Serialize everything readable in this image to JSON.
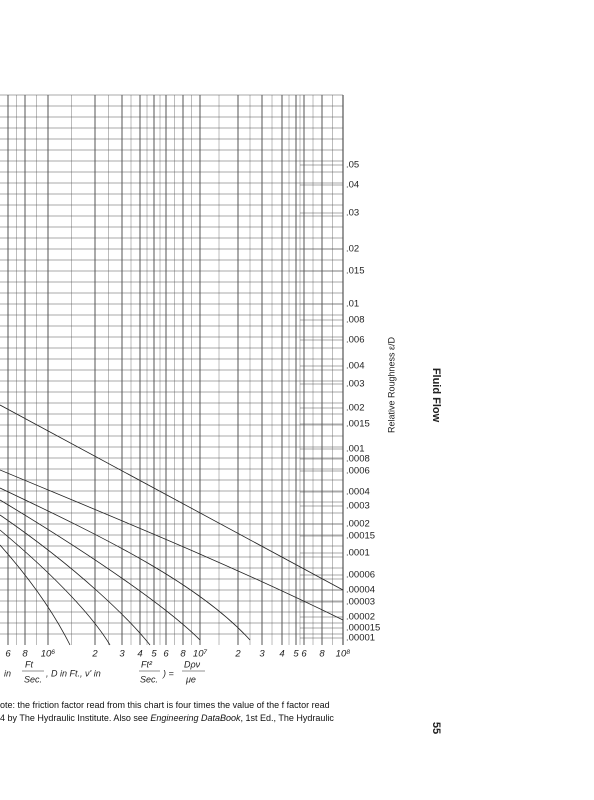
{
  "roughness_labels": [
    ".05",
    ".04",
    ".03",
    ".02",
    ".015",
    ".01",
    ".008",
    ".006",
    ".004",
    ".003",
    ".002",
    ".0015",
    ".001",
    ".0008",
    ".0006",
    ".0004",
    ".0003",
    ".0002",
    ".00015",
    ".0001",
    ".00006",
    ".00004",
    ".00003",
    ".00002",
    ".000015",
    ".00001"
  ],
  "axis_title": "Relative Roughness ε/D",
  "x_labels": [
    "6",
    "8",
    "10⁶",
    "2",
    "3",
    "4",
    "5",
    "6",
    "8",
    "10⁷",
    "2",
    "3",
    "4",
    "5",
    "6",
    "8",
    "10⁸"
  ],
  "formula": [
    "in",
    "Ft",
    "Sec.",
    ", D in Ft., ν' in",
    "Ft²",
    "Sec.",
    ") =",
    "Dρν",
    "μe"
  ],
  "side_header": "Fluid Flow",
  "page_number": "55",
  "note": [
    "ote: the friction factor read from this chart is four times the value of the f factor read",
    "4 by The Hydraulic Institute. Also see ",
    "Engineering DataBook",
    ", 1st Ed., The Hydraulic"
  ]
}
